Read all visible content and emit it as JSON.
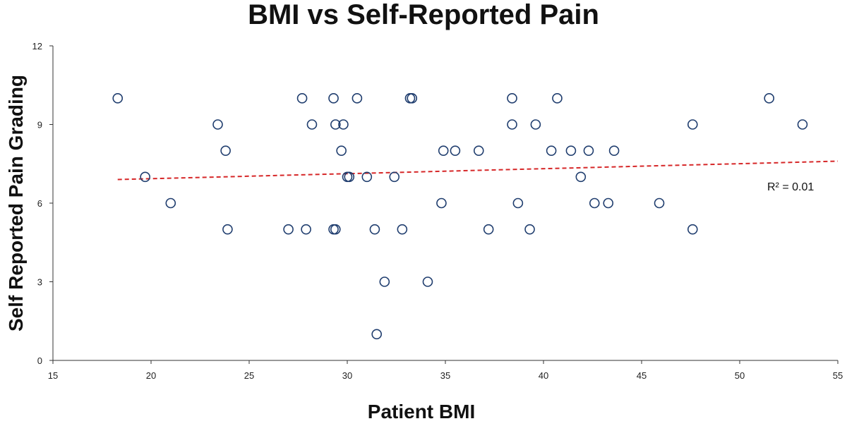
{
  "chart_data": {
    "type": "scatter",
    "title": "BMI vs Self-Reported Pain",
    "xlabel": "Patient BMI",
    "ylabel": "Self Reported Pain Grading",
    "xlim": [
      15,
      55
    ],
    "ylim": [
      0,
      12
    ],
    "x_ticks": [
      15,
      20,
      25,
      30,
      35,
      40,
      45,
      50,
      55
    ],
    "y_ticks": [
      0,
      3,
      6,
      9,
      12
    ],
    "grid": false,
    "marker": "open-circle",
    "marker_color": "#1f3d6e",
    "trendline": {
      "style": "dashed",
      "color": "#d62728",
      "x": [
        18.3,
        55
      ],
      "y": [
        6.9,
        7.6
      ]
    },
    "annotation": "R² = 0.01",
    "points": [
      {
        "x": 18.3,
        "y": 10
      },
      {
        "x": 19.7,
        "y": 7
      },
      {
        "x": 21.0,
        "y": 6
      },
      {
        "x": 23.4,
        "y": 9
      },
      {
        "x": 23.8,
        "y": 8
      },
      {
        "x": 23.9,
        "y": 5
      },
      {
        "x": 27.0,
        "y": 5
      },
      {
        "x": 27.7,
        "y": 10
      },
      {
        "x": 27.9,
        "y": 5
      },
      {
        "x": 28.2,
        "y": 9
      },
      {
        "x": 29.3,
        "y": 5
      },
      {
        "x": 29.4,
        "y": 5
      },
      {
        "x": 29.3,
        "y": 10
      },
      {
        "x": 29.4,
        "y": 9
      },
      {
        "x": 29.8,
        "y": 9
      },
      {
        "x": 29.7,
        "y": 8
      },
      {
        "x": 30.0,
        "y": 7
      },
      {
        "x": 30.1,
        "y": 7
      },
      {
        "x": 30.5,
        "y": 10
      },
      {
        "x": 31.0,
        "y": 7
      },
      {
        "x": 31.4,
        "y": 5
      },
      {
        "x": 31.5,
        "y": 1
      },
      {
        "x": 31.9,
        "y": 3
      },
      {
        "x": 32.4,
        "y": 7
      },
      {
        "x": 32.8,
        "y": 5
      },
      {
        "x": 33.2,
        "y": 10
      },
      {
        "x": 33.3,
        "y": 10
      },
      {
        "x": 34.1,
        "y": 3
      },
      {
        "x": 34.8,
        "y": 6
      },
      {
        "x": 34.9,
        "y": 8
      },
      {
        "x": 35.5,
        "y": 8
      },
      {
        "x": 36.7,
        "y": 8
      },
      {
        "x": 37.2,
        "y": 5
      },
      {
        "x": 38.4,
        "y": 9
      },
      {
        "x": 38.4,
        "y": 10
      },
      {
        "x": 38.7,
        "y": 6
      },
      {
        "x": 39.3,
        "y": 5
      },
      {
        "x": 39.6,
        "y": 9
      },
      {
        "x": 40.4,
        "y": 8
      },
      {
        "x": 40.7,
        "y": 10
      },
      {
        "x": 41.4,
        "y": 8
      },
      {
        "x": 41.9,
        "y": 7
      },
      {
        "x": 42.3,
        "y": 8
      },
      {
        "x": 42.6,
        "y": 6
      },
      {
        "x": 43.3,
        "y": 6
      },
      {
        "x": 43.6,
        "y": 8
      },
      {
        "x": 45.9,
        "y": 6
      },
      {
        "x": 47.6,
        "y": 9
      },
      {
        "x": 47.6,
        "y": 5
      },
      {
        "x": 51.5,
        "y": 10
      },
      {
        "x": 53.2,
        "y": 9
      }
    ]
  }
}
